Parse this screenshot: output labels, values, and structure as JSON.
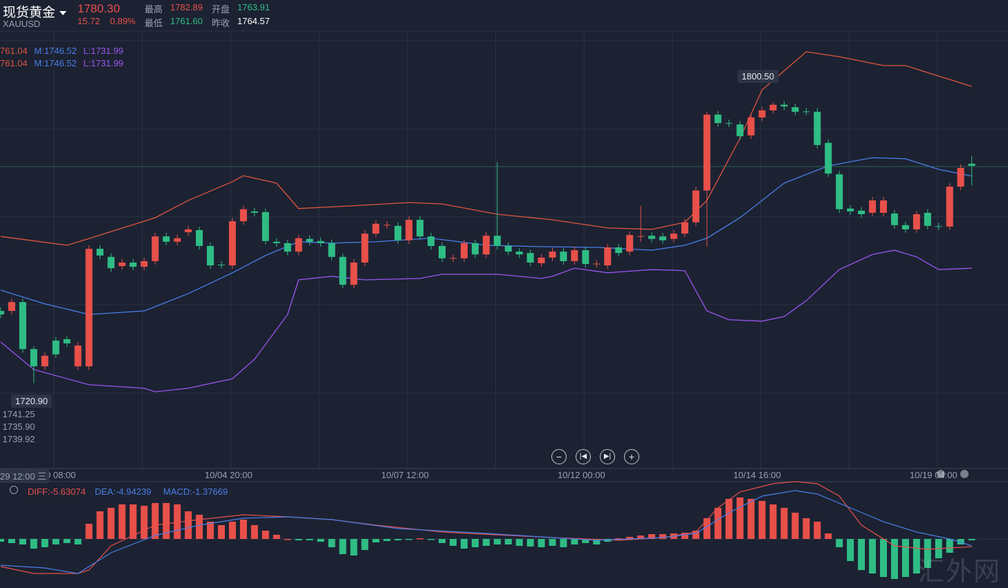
{
  "header": {
    "title": "现货黄金",
    "symbol": "XAUUSD",
    "price": "1780.30",
    "change": "15.72",
    "change_pct": "0.89%",
    "high_label": "最高",
    "high": "1782.89",
    "low_label": "最低",
    "low": "1761.60",
    "open_label": "开盘",
    "open": "1763.91",
    "prev_close_label": "昨收",
    "prev_close": "1764.57"
  },
  "bands_legend": [
    {
      "upper": "761.04",
      "mid": "M:1746.52",
      "lower": "L:1731.99"
    },
    {
      "upper": "761.04",
      "mid": "M:1746.52",
      "lower": "L:1731.99"
    }
  ],
  "ohlc_panel": [
    "高 1741.25",
    "低 1735.90",
    "盘 1739.92"
  ],
  "tooltips": {
    "max_price": "1800.50",
    "min_price": "1720.90",
    "crosshair_time": "29 12:00 三"
  },
  "time_axis": [
    "0 08:00",
    "10/04 20:00",
    "10/07 12:00",
    "10/12 00:00",
    "10/14 16:00",
    "10/19 04:00"
  ],
  "nav_buttons": [
    "zoom-out",
    "scroll-back",
    "scroll-forward",
    "zoom-in"
  ],
  "macd_legend": {
    "diff": "DIFF:-5.63074",
    "dea": "DEA:-4.94239",
    "macd": "MACD:-1.37669"
  },
  "watermark": "汇外网",
  "colors": {
    "up": "#e8504a",
    "down": "#2fbd85",
    "upper": "#e0553e",
    "mid": "#4a7fe8",
    "lower": "#9a55f0",
    "bg": "#1c2232",
    "grid": "#2c3345"
  },
  "chart_data": {
    "type": "candlestick",
    "symbol": "XAUUSD",
    "current_price": 1780.3,
    "candles_open_close": [
      [
        1741.4,
        1740.4
      ],
      [
        1741.4,
        1743.9
      ],
      [
        1743.9,
        1730.6
      ],
      [
        1730.6,
        1725.7
      ],
      [
        1725.7,
        1728.7
      ],
      [
        1733.0,
        1729.1
      ],
      [
        1733.4,
        1732.2
      ],
      [
        1725.7,
        1731.6
      ],
      [
        1725.7,
        1759.0
      ],
      [
        1759.0,
        1757.1
      ],
      [
        1756.7,
        1753.5
      ],
      [
        1754.1,
        1755.1
      ],
      [
        1755.1,
        1753.9
      ],
      [
        1753.9,
        1755.5
      ],
      [
        1755.5,
        1762.5
      ],
      [
        1762.5,
        1761.0
      ],
      [
        1761.0,
        1762.0
      ],
      [
        1763.7,
        1764.5
      ],
      [
        1764.3,
        1759.8
      ],
      [
        1759.8,
        1754.3
      ],
      [
        1754.5,
        1754.4
      ],
      [
        1754.3,
        1766.8
      ],
      [
        1766.8,
        1770.2
      ],
      [
        1769.6,
        1769.2
      ],
      [
        1769.4,
        1761.2
      ],
      [
        1761.0,
        1760.6
      ],
      [
        1760.6,
        1758.2
      ],
      [
        1758.2,
        1762.0
      ],
      [
        1761.8,
        1761.0
      ],
      [
        1761.2,
        1760.6
      ],
      [
        1760.6,
        1756.7
      ],
      [
        1756.7,
        1748.8
      ],
      [
        1748.8,
        1755.1
      ],
      [
        1755.1,
        1763.3
      ],
      [
        1763.3,
        1766.1
      ],
      [
        1765.7,
        1765.8
      ],
      [
        1765.5,
        1761.4
      ],
      [
        1761.4,
        1767.2
      ],
      [
        1767.2,
        1762.5
      ],
      [
        1762.5,
        1759.8
      ],
      [
        1759.8,
        1756.3
      ],
      [
        1756.3,
        1756.4
      ],
      [
        1756.3,
        1760.6
      ],
      [
        1760.6,
        1757.4
      ],
      [
        1757.4,
        1762.7
      ],
      [
        1762.7,
        1759.8
      ],
      [
        1759.8,
        1758.2
      ],
      [
        1758.2,
        1757.4
      ],
      [
        1757.8,
        1755.1
      ],
      [
        1754.9,
        1756.5
      ],
      [
        1756.5,
        1758.2
      ],
      [
        1758.2,
        1755.5
      ],
      [
        1755.5,
        1758.6
      ],
      [
        1758.6,
        1754.7
      ],
      [
        1754.7,
        1754.8
      ],
      [
        1754.3,
        1759.4
      ],
      [
        1759.4,
        1757.8
      ],
      [
        1758.2,
        1762.9
      ],
      [
        1762.5,
        1762.6
      ],
      [
        1762.7,
        1761.8
      ],
      [
        1762.5,
        1761.4
      ],
      [
        1761.8,
        1763.3
      ],
      [
        1763.3,
        1766.5
      ],
      [
        1766.5,
        1775.5
      ],
      [
        1775.5,
        1797.0
      ],
      [
        1797.0,
        1794.6
      ],
      [
        1794.6,
        1794.5
      ],
      [
        1794.2,
        1790.9
      ],
      [
        1791.1,
        1796.2
      ],
      [
        1796.2,
        1798.2
      ],
      [
        1798.2,
        1799.8
      ],
      [
        1799.8,
        1799.3
      ],
      [
        1799.1,
        1797.8
      ],
      [
        1797.9,
        1797.8
      ],
      [
        1797.8,
        1788.4
      ],
      [
        1789.0,
        1780.3
      ],
      [
        1780.1,
        1770.2
      ],
      [
        1770.4,
        1769.6
      ],
      [
        1769.8,
        1768.8
      ],
      [
        1769.2,
        1772.7
      ],
      [
        1769.2,
        1772.7
      ],
      [
        1769.0,
        1765.7
      ],
      [
        1765.7,
        1764.5
      ],
      [
        1764.5,
        1768.8
      ],
      [
        1769.2,
        1765.5
      ],
      [
        1765.4,
        1765.3
      ],
      [
        1765.3,
        1776.6
      ],
      [
        1776.6,
        1781.9
      ],
      [
        1783.1,
        1782.5
      ]
    ],
    "wick_padding": 1.0,
    "wick_extremes": {
      "3": [
        1731.4,
        1720.9
      ],
      "45": [
        1783.5,
        1758.8
      ],
      "58": [
        1771.2,
        1761.0
      ],
      "64": [
        1797.8,
        1759.6
      ],
      "70": [
        1800.5,
        1797.4
      ],
      "88": [
        1785.2,
        1777.0
      ]
    },
    "bollinger": {
      "upper": [
        [
          0,
          1762.5
        ],
        [
          6,
          1760.0
        ],
        [
          8,
          1761.9
        ],
        [
          14,
          1767.8
        ],
        [
          17,
          1772.7
        ],
        [
          21,
          1778.0
        ],
        [
          22,
          1779.7
        ],
        [
          25,
          1777.6
        ],
        [
          27,
          1770.4
        ],
        [
          32,
          1771.2
        ],
        [
          37,
          1772.1
        ],
        [
          40,
          1771.7
        ],
        [
          45,
          1768.8
        ],
        [
          50,
          1767.2
        ],
        [
          55,
          1764.9
        ],
        [
          59,
          1764.5
        ],
        [
          62,
          1766.5
        ],
        [
          64,
          1772.7
        ],
        [
          67,
          1790.3
        ],
        [
          69,
          1804.0
        ],
        [
          73,
          1814.8
        ],
        [
          76,
          1813.4
        ],
        [
          80,
          1810.9
        ],
        [
          82,
          1810.9
        ],
        [
          84,
          1808.9
        ],
        [
          88,
          1805.0
        ]
      ],
      "middle": [
        [
          0,
          1747.3
        ],
        [
          4,
          1743.4
        ],
        [
          8,
          1740.4
        ],
        [
          13,
          1741.4
        ],
        [
          17,
          1746.3
        ],
        [
          21,
          1752.2
        ],
        [
          24,
          1757.1
        ],
        [
          27,
          1761.0
        ],
        [
          30,
          1760.6
        ],
        [
          34,
          1761.0
        ],
        [
          39,
          1762.0
        ],
        [
          44,
          1760.0
        ],
        [
          49,
          1759.6
        ],
        [
          54,
          1759.4
        ],
        [
          59,
          1758.6
        ],
        [
          62,
          1760.0
        ],
        [
          64,
          1762.0
        ],
        [
          67,
          1767.8
        ],
        [
          71,
          1777.6
        ],
        [
          75,
          1782.5
        ],
        [
          79,
          1784.8
        ],
        [
          82,
          1784.5
        ],
        [
          85,
          1781.5
        ],
        [
          88,
          1779.6
        ]
      ],
      "lower": [
        [
          0,
          1732.6
        ],
        [
          3,
          1724.8
        ],
        [
          8,
          1720.5
        ],
        [
          13,
          1719.5
        ],
        [
          14,
          1718.5
        ],
        [
          17,
          1719.5
        ],
        [
          21,
          1722.2
        ],
        [
          23,
          1727.7
        ],
        [
          26,
          1740.4
        ],
        [
          27,
          1750.2
        ],
        [
          30,
          1751.2
        ],
        [
          33,
          1750.2
        ],
        [
          38,
          1750.6
        ],
        [
          40,
          1751.8
        ],
        [
          45,
          1751.8
        ],
        [
          49,
          1750.6
        ],
        [
          50,
          1751.2
        ],
        [
          52,
          1753.5
        ],
        [
          55,
          1752.2
        ],
        [
          59,
          1753.1
        ],
        [
          62,
          1752.8
        ],
        [
          64,
          1741.4
        ],
        [
          66,
          1738.9
        ],
        [
          69,
          1738.5
        ],
        [
          71,
          1739.8
        ],
        [
          73,
          1744.3
        ],
        [
          76,
          1753.1
        ],
        [
          79,
          1757.4
        ],
        [
          81,
          1758.6
        ],
        [
          83,
          1756.7
        ],
        [
          85,
          1753.1
        ],
        [
          88,
          1753.5
        ]
      ]
    },
    "macd": {
      "histogram": [
        -2,
        -3,
        -4,
        -7,
        -6,
        -4,
        -3,
        -4,
        11,
        20,
        22.5,
        25,
        25,
        24,
        26,
        26,
        25,
        20,
        17.5,
        12.5,
        10,
        12.5,
        14,
        10,
        6,
        3,
        0,
        -1,
        -1,
        -2,
        -6,
        -11,
        -12,
        -8,
        -2.5,
        -1.5,
        -1,
        -0.5,
        0.5,
        -0.5,
        -3,
        -5,
        -7,
        -6,
        -5,
        -4,
        -4,
        -5,
        -5.5,
        -6,
        -5,
        -6,
        -4,
        -3,
        -4,
        -2,
        0.5,
        1.5,
        2.5,
        3.5,
        3.5,
        4,
        4.5,
        6,
        15,
        22.5,
        29,
        30,
        29,
        27.5,
        25,
        22.5,
        19,
        15,
        12.5,
        4,
        -6,
        -16,
        -22.5,
        -25,
        -27.5,
        -29,
        -27.5,
        -25,
        -21,
        -14,
        -10,
        -4,
        -1
      ],
      "diff": [
        [
          0,
          -20
        ],
        [
          3,
          -25
        ],
        [
          7,
          -25
        ],
        [
          8,
          -22.5
        ],
        [
          10,
          -5
        ],
        [
          14,
          10
        ],
        [
          18,
          14
        ],
        [
          22,
          17.5
        ],
        [
          26,
          16
        ],
        [
          30,
          14
        ],
        [
          34,
          10
        ],
        [
          40,
          5
        ],
        [
          50,
          1
        ],
        [
          56,
          -1
        ],
        [
          60,
          1
        ],
        [
          63,
          5
        ],
        [
          65,
          22.5
        ],
        [
          67,
          34
        ],
        [
          70,
          40
        ],
        [
          72,
          41.5
        ],
        [
          74,
          40
        ],
        [
          76,
          31
        ],
        [
          78,
          10
        ],
        [
          81,
          -5
        ],
        [
          84,
          -7.5
        ],
        [
          86,
          -6.5
        ],
        [
          88,
          -5.6
        ]
      ],
      "dea": [
        [
          0,
          -19
        ],
        [
          4,
          -21
        ],
        [
          7,
          -25
        ],
        [
          10,
          -10
        ],
        [
          14,
          2.5
        ],
        [
          18,
          10
        ],
        [
          22,
          15
        ],
        [
          26,
          16
        ],
        [
          30,
          14
        ],
        [
          36,
          7.5
        ],
        [
          44,
          4
        ],
        [
          54,
          -1
        ],
        [
          60,
          1
        ],
        [
          63,
          4
        ],
        [
          66,
          19
        ],
        [
          69,
          31
        ],
        [
          72,
          35
        ],
        [
          74,
          32.5
        ],
        [
          77,
          22.5
        ],
        [
          80,
          12.5
        ],
        [
          83,
          5
        ],
        [
          86,
          0
        ],
        [
          88,
          -4.9
        ]
      ]
    }
  }
}
